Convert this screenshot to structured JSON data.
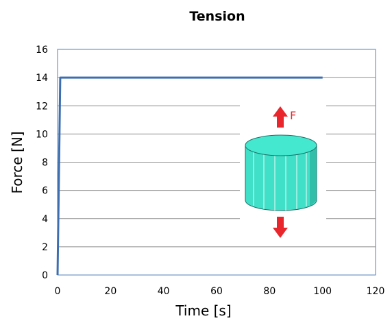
{
  "chart_data": {
    "type": "line",
    "title": "Tension",
    "xlabel": "Time [s]",
    "ylabel": "Force [N]",
    "xlim": [
      0,
      120
    ],
    "ylim": [
      0,
      16
    ],
    "x_ticks": [
      "0",
      "20",
      "40",
      "60",
      "80",
      "100",
      "120"
    ],
    "y_ticks": [
      "0",
      "2",
      "4",
      "6",
      "8",
      "10",
      "12",
      "14",
      "16"
    ],
    "grid": "horizontal",
    "legend": "none",
    "series": [
      {
        "color": "#3d6fb0",
        "x": [
          0,
          1,
          100
        ],
        "y": [
          0,
          14,
          14
        ]
      }
    ],
    "annotation": {
      "label": "F",
      "icon": "cylinder-tension-icon",
      "arrow_color": "#e8262b",
      "cylinder_color": "#40e0c8"
    }
  }
}
